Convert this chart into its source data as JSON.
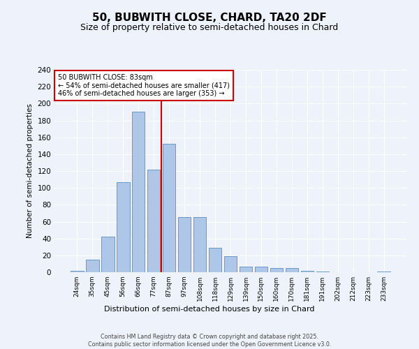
{
  "title": "50, BUBWITH CLOSE, CHARD, TA20 2DF",
  "subtitle": "Size of property relative to semi-detached houses in Chard",
  "xlabel": "Distribution of semi-detached houses by size in Chard",
  "ylabel": "Number of semi-detached properties",
  "categories": [
    "24sqm",
    "35sqm",
    "45sqm",
    "56sqm",
    "66sqm",
    "77sqm",
    "87sqm",
    "97sqm",
    "108sqm",
    "118sqm",
    "129sqm",
    "139sqm",
    "150sqm",
    "160sqm",
    "170sqm",
    "181sqm",
    "191sqm",
    "202sqm",
    "212sqm",
    "223sqm",
    "233sqm"
  ],
  "values": [
    2,
    15,
    42,
    107,
    190,
    122,
    152,
    65,
    65,
    29,
    19,
    7,
    7,
    5,
    5,
    2,
    1,
    0,
    0,
    0,
    1
  ],
  "bar_color": "#aec6e8",
  "bar_edge_color": "#5a8fc2",
  "vline_color": "#cc0000",
  "annotation_title": "50 BUBWITH CLOSE: 83sqm",
  "annotation_line1": "← 54% of semi-detached houses are smaller (417)",
  "annotation_line2": "46% of semi-detached houses are larger (353) →",
  "annotation_box_color": "#cc0000",
  "ylim": [
    0,
    240
  ],
  "yticks": [
    0,
    20,
    40,
    60,
    80,
    100,
    120,
    140,
    160,
    180,
    200,
    220,
    240
  ],
  "footer1": "Contains HM Land Registry data © Crown copyright and database right 2025.",
  "footer2": "Contains public sector information licensed under the Open Government Licence v3.0.",
  "background_color": "#eef2fa",
  "title_fontsize": 11,
  "subtitle_fontsize": 9
}
